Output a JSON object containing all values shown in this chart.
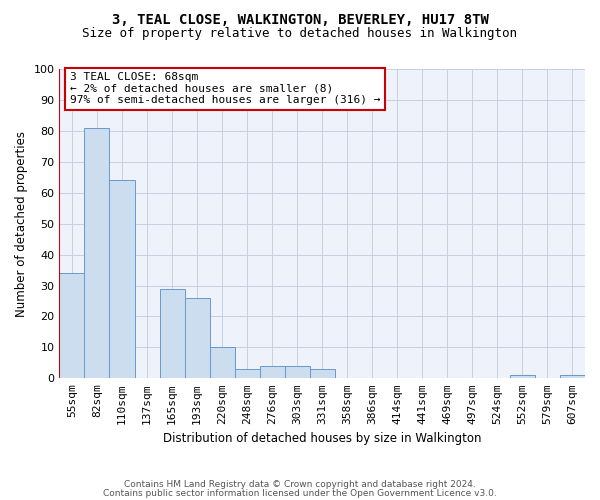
{
  "title": "3, TEAL CLOSE, WALKINGTON, BEVERLEY, HU17 8TW",
  "subtitle": "Size of property relative to detached houses in Walkington",
  "xlabel": "Distribution of detached houses by size in Walkington",
  "ylabel": "Number of detached properties",
  "bar_color": "#ccddf0",
  "bar_edge_color": "#6699cc",
  "categories": [
    "55sqm",
    "82sqm",
    "110sqm",
    "137sqm",
    "165sqm",
    "193sqm",
    "220sqm",
    "248sqm",
    "276sqm",
    "303sqm",
    "331sqm",
    "358sqm",
    "386sqm",
    "414sqm",
    "441sqm",
    "469sqm",
    "497sqm",
    "524sqm",
    "552sqm",
    "579sqm",
    "607sqm"
  ],
  "values": [
    34,
    81,
    64,
    0,
    29,
    26,
    10,
    3,
    4,
    4,
    3,
    0,
    0,
    0,
    0,
    0,
    0,
    0,
    1,
    0,
    1
  ],
  "ylim": [
    0,
    100
  ],
  "yticks": [
    0,
    10,
    20,
    30,
    40,
    50,
    60,
    70,
    80,
    90,
    100
  ],
  "annotation_line1": "3 TEAL CLOSE: 68sqm",
  "annotation_line2": "← 2% of detached houses are smaller (8)",
  "annotation_line3": "97% of semi-detached houses are larger (316) →",
  "red_line_color": "#cc0000",
  "annotation_box_edge_color": "#cc0000",
  "footer_line1": "Contains HM Land Registry data © Crown copyright and database right 2024.",
  "footer_line2": "Contains public sector information licensed under the Open Government Licence v3.0.",
  "background_color": "#eef2fa",
  "grid_color": "#c8d0e0",
  "title_fontsize": 10,
  "subtitle_fontsize": 9,
  "axis_label_fontsize": 8.5,
  "tick_fontsize": 8,
  "annotation_fontsize": 8,
  "footer_fontsize": 6.5
}
